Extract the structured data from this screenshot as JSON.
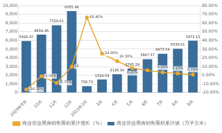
{
  "chart_data": {
    "type": "bar",
    "categories": [
      "2020年9月",
      "10月",
      "11月",
      "12月",
      "2021年2月",
      "3月",
      "4月",
      "5月",
      "6月",
      "7月",
      "8月",
      "9月"
    ],
    "series": [
      {
        "name": "商业营业用房销售面积累计値（万平方米）",
        "type": "bar",
        "color": "#3a6d9a",
        "values": [
          5929.47,
          6659.36,
          7729.61,
          9355.46,
          758.73,
          1524.59,
          2126.16,
          2785.29,
          3847.57,
          4473.04,
          5039.01,
          5972.15
        ]
      },
      {
        "name": "商业营业用房销售面积累计增长（%）",
        "type": "line",
        "color": "#e8a830",
        "axis": "y2",
        "marker": "circle",
        "values": [
          -16.3,
          -1.0,
          -8.7,
          10.0,
          66.4,
          24.9,
          16.3,
          8.2,
          5.7,
          3.3,
          2.1,
          0.7
        ],
        "value_labels": [
          "-16.30%",
          "-1.00%",
          "-8.70%",
          "10",
          "66.40%",
          "24.90%",
          "16.30%",
          "8.20%",
          null,
          "3.30%",
          "2.10%",
          "0.70%"
        ]
      }
    ],
    "ylim": [
      0,
      10000
    ],
    "yticks": [
      0,
      {
        "value": 1000,
        "label": "1,000"
      },
      {
        "value": 2000,
        "label": "2,000"
      },
      {
        "value": 3000,
        "label": "3,000"
      },
      {
        "value": 4000,
        "label": "4,000"
      },
      {
        "value": 5000,
        "label": "5,000"
      },
      {
        "value": 6000,
        "label": "6,000"
      },
      {
        "value": 7000,
        "label": "7,000"
      },
      {
        "value": 8000,
        "label": "8,000"
      },
      {
        "value": 9000,
        "label": "9,000"
      },
      {
        "value": 10000,
        "label": "10,000"
      }
    ],
    "y2lim": [
      -20,
      80
    ],
    "y2ticks": [
      {
        "value": -20,
        "label": "-20.00%"
      },
      {
        "value": -10,
        "label": "-10.00%"
      },
      {
        "value": 0,
        "label": "0.00%"
      },
      {
        "value": 10,
        "label": "10.00%"
      },
      {
        "value": 20,
        "label": "20.00%"
      },
      {
        "value": 30,
        "label": "30.00%"
      },
      {
        "value": 40,
        "label": "40.00%"
      },
      {
        "value": 50,
        "label": "50.00%"
      },
      {
        "value": 60,
        "label": "60.00%"
      },
      {
        "value": 70,
        "label": "70.00%"
      },
      {
        "value": 80,
        "label": "80.00%"
      }
    ],
    "grid": true,
    "legend": "bottom",
    "data_labels": true
  }
}
